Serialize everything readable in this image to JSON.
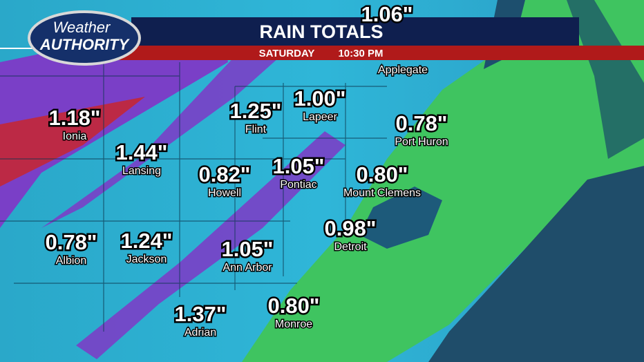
{
  "header": {
    "logo_top": "Weather",
    "logo_bottom": "AUTHORITY",
    "title": "RAIN TOTALS",
    "day": "SATURDAY",
    "time": "10:30 PM"
  },
  "locations": [
    {
      "total": "1.06\""
    },
    {
      "name": "Applegate"
    },
    {
      "total": "1.18\"",
      "name": "Ionia"
    },
    {
      "total": "1.44\"",
      "name": "Lansing"
    },
    {
      "total": "1.25\"",
      "name": "Flint"
    },
    {
      "total": "1.00\"",
      "name": "Lapeer"
    },
    {
      "total": "0.78\"",
      "name": "Port Huron"
    },
    {
      "total": "0.82\"",
      "name": "Howell"
    },
    {
      "total": "1.05\"",
      "name": "Pontiac"
    },
    {
      "total": "0.80\"",
      "name": "Mount Clemens"
    },
    {
      "total": "0.98\"",
      "name": "Detroit"
    },
    {
      "total": "0.78\"",
      "name": "Albion"
    },
    {
      "total": "1.24\"",
      "name": "Jackson"
    },
    {
      "total": "1.05\"",
      "name": "Ann Arbor"
    },
    {
      "total": "1.37\"",
      "name": "Adrian"
    },
    {
      "total": "0.80\"",
      "name": "Monroe"
    }
  ]
}
